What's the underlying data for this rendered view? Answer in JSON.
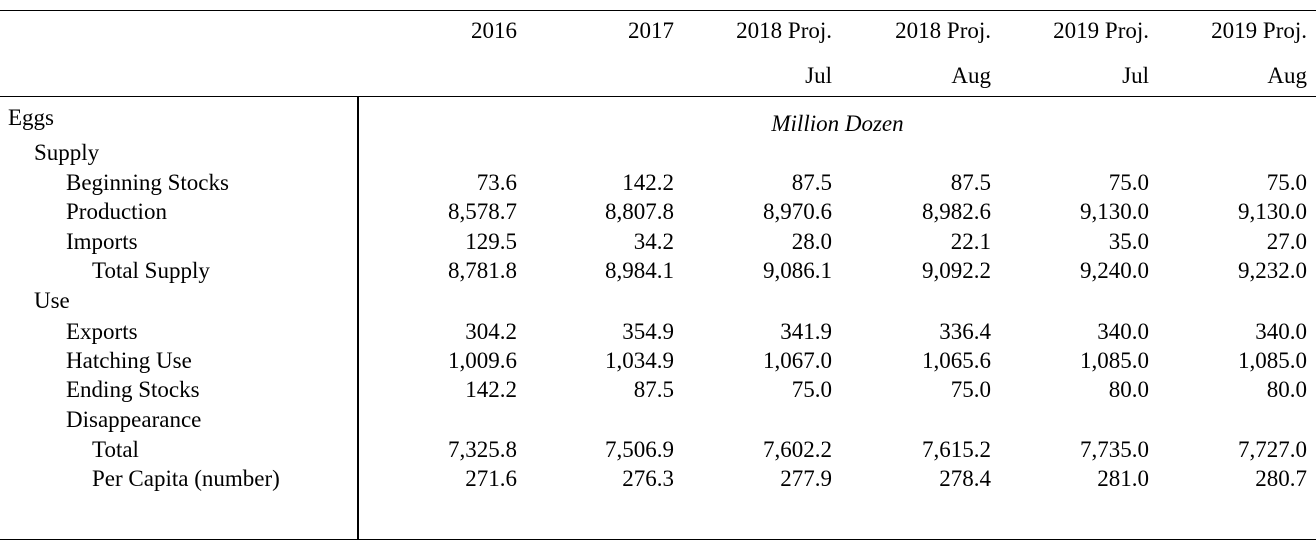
{
  "table": {
    "columns": [
      {
        "line1": "2016",
        "line2": ""
      },
      {
        "line1": "2017",
        "line2": ""
      },
      {
        "line1": "2018 Proj.",
        "line2": "Jul"
      },
      {
        "line1": "2018 Proj.",
        "line2": "Aug"
      },
      {
        "line1": "2019 Proj.",
        "line2": "Jul"
      },
      {
        "line1": "2019 Proj.",
        "line2": "Aug"
      }
    ],
    "unit_label": "Million Dozen",
    "rows": [
      {
        "label": "Eggs",
        "indent": 0,
        "values": []
      },
      {
        "label": "Supply",
        "indent": 1,
        "values": []
      },
      {
        "label": "Beginning Stocks",
        "indent": 2,
        "values": [
          "73.6",
          "142.2",
          "87.5",
          "87.5",
          "75.0",
          "75.0"
        ]
      },
      {
        "label": "Production",
        "indent": 2,
        "values": [
          "8,578.7",
          "8,807.8",
          "8,970.6",
          "8,982.6",
          "9,130.0",
          "9,130.0"
        ]
      },
      {
        "label": "Imports",
        "indent": 2,
        "values": [
          "129.5",
          "34.2",
          "28.0",
          "22.1",
          "35.0",
          "27.0"
        ]
      },
      {
        "label": "Total Supply",
        "indent": 3,
        "values": [
          "8,781.8",
          "8,984.1",
          "9,086.1",
          "9,092.2",
          "9,240.0",
          "9,232.0"
        ]
      },
      {
        "label": "Use",
        "indent": 1,
        "values": []
      },
      {
        "label": "Exports",
        "indent": 2,
        "values": [
          "304.2",
          "354.9",
          "341.9",
          "336.4",
          "340.0",
          "340.0"
        ]
      },
      {
        "label": "Hatching Use",
        "indent": 2,
        "values": [
          "1,009.6",
          "1,034.9",
          "1,067.0",
          "1,065.6",
          "1,085.0",
          "1,085.0"
        ]
      },
      {
        "label": "Ending Stocks",
        "indent": 2,
        "values": [
          "142.2",
          "87.5",
          "75.0",
          "75.0",
          "80.0",
          "80.0"
        ]
      },
      {
        "label": "Disappearance",
        "indent": 2,
        "values": []
      },
      {
        "label": "Total",
        "indent": 3,
        "values": [
          "7,325.8",
          "7,506.9",
          "7,602.2",
          "7,615.2",
          "7,735.0",
          "7,727.0"
        ]
      },
      {
        "label": "Per Capita (number)",
        "indent": 3,
        "values": [
          "271.6",
          "276.3",
          "277.9",
          "278.4",
          "281.0",
          "280.7"
        ]
      }
    ]
  }
}
